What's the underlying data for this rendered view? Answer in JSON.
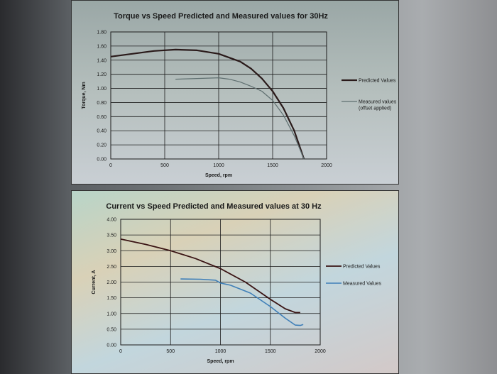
{
  "chart_data": [
    {
      "type": "line",
      "title": "Torque vs Speed Predicted and Measured values for 30Hz",
      "xlabel": "Speed, rpm",
      "ylabel": "Torque, Nm",
      "xlim": [
        0,
        2000
      ],
      "ylim": [
        0,
        1.8
      ],
      "xticks": [
        "0",
        "500",
        "1000",
        "1500",
        "2000"
      ],
      "yticks": [
        "0.00",
        "0.20",
        "0.40",
        "0.60",
        "0.80",
        "1.00",
        "1.20",
        "1.40",
        "1.60",
        "1.80"
      ],
      "grid": true,
      "legend_position": "right",
      "series": [
        {
          "name": "Predicted Values",
          "color": "#2a1a1a",
          "width": 2.2,
          "x": [
            0,
            200,
            400,
            600,
            800,
            1000,
            1200,
            1300,
            1400,
            1500,
            1600,
            1700,
            1790
          ],
          "y": [
            1.45,
            1.49,
            1.53,
            1.55,
            1.54,
            1.49,
            1.38,
            1.28,
            1.14,
            0.96,
            0.72,
            0.4,
            0.0
          ]
        },
        {
          "name": "Measured values (offset applied)",
          "color": "#5f6f70",
          "width": 1.2,
          "x": [
            600,
            800,
            1000,
            1100,
            1200,
            1300,
            1400,
            1500,
            1600,
            1700,
            1790
          ],
          "y": [
            1.13,
            1.14,
            1.15,
            1.13,
            1.09,
            1.03,
            0.96,
            0.83,
            0.62,
            0.33,
            0.0
          ]
        }
      ]
    },
    {
      "type": "line",
      "title": "Current vs Speed Predicted and Measured values at 30 Hz",
      "xlabel": "Speed, rpm",
      "ylabel": "Current, A",
      "xlim": [
        0,
        2000
      ],
      "ylim": [
        0,
        4
      ],
      "xticks": [
        "0",
        "500",
        "1000",
        "1500",
        "2000"
      ],
      "yticks": [
        "0.00",
        "0.50",
        "1.00",
        "1.50",
        "2.00",
        "2.50",
        "3.00",
        "3.50",
        "4.00"
      ],
      "grid": true,
      "legend_position": "right",
      "series": [
        {
          "name": "Predicted Values",
          "color": "#3a1414",
          "width": 1.8,
          "x": [
            0,
            250,
            500,
            750,
            1000,
            1250,
            1500,
            1650,
            1750,
            1800
          ],
          "y": [
            3.37,
            3.2,
            3.0,
            2.75,
            2.43,
            2.0,
            1.45,
            1.15,
            1.03,
            1.03
          ]
        },
        {
          "name": "Measured Values",
          "color": "#3f7fb8",
          "width": 1.6,
          "x": [
            600,
            800,
            950,
            1000,
            1100,
            1300,
            1500,
            1650,
            1750,
            1800,
            1830
          ],
          "y": [
            2.1,
            2.09,
            2.06,
            1.97,
            1.9,
            1.65,
            1.22,
            0.85,
            0.63,
            0.62,
            0.65
          ]
        }
      ]
    }
  ]
}
